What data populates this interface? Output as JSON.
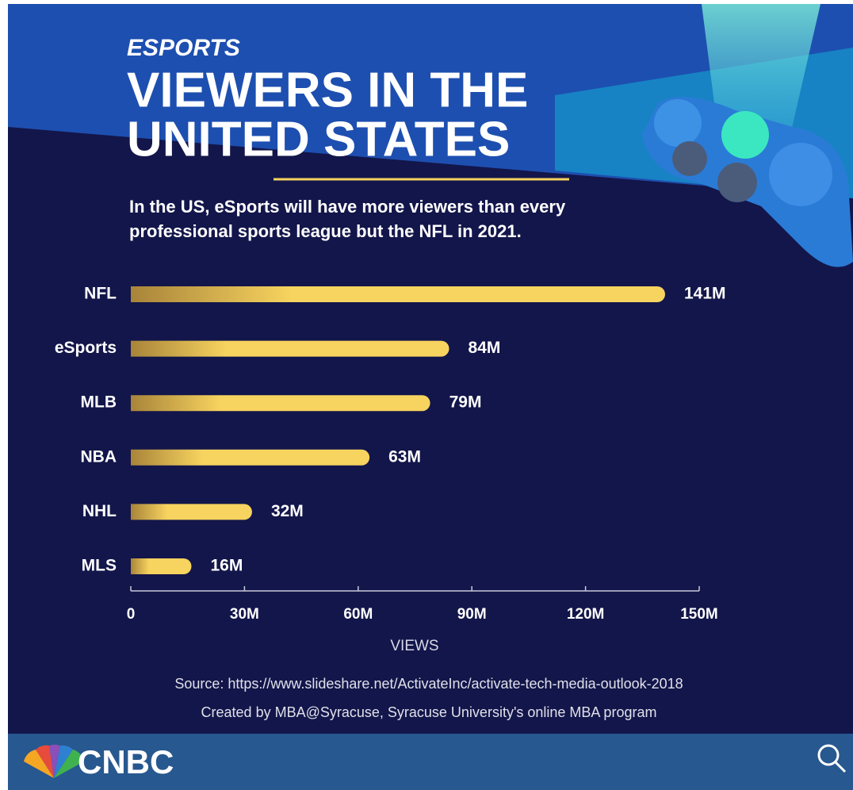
{
  "chart_data": {
    "type": "barh",
    "kicker": "ESPORTS",
    "title": [
      "VIEWERS IN THE",
      "UNITED STATES"
    ],
    "subtitle": [
      "In the US, eSports will have more viewers than every",
      "professional sports league but the NFL in 2021."
    ],
    "categories": [
      "NFL",
      "eSports",
      "MLB",
      "NBA",
      "NHL",
      "MLS"
    ],
    "values": [
      141,
      84,
      79,
      63,
      32,
      16
    ],
    "value_labels": [
      "141M",
      "84M",
      "79M",
      "63M",
      "32M",
      "16M"
    ],
    "color": "#f7d35f",
    "xlim": [
      0,
      150
    ],
    "xticks": [
      0,
      {
        "value": 30,
        "label": "30M"
      },
      {
        "value": 60,
        "label": "60M"
      },
      {
        "value": 90,
        "label": "90M"
      },
      {
        "value": 120,
        "label": "120M"
      },
      {
        "value": 150,
        "label": "150M"
      }
    ],
    "xlabel": "VIEWS",
    "notes": [
      "Source: https://www.slideshare.net/ActivateInc/activate-tech-media-outlook-2018",
      "Created by MBA@Syracuse, Syracuse University's online MBA program"
    ]
  },
  "footer": {
    "brand": "CNBC"
  }
}
